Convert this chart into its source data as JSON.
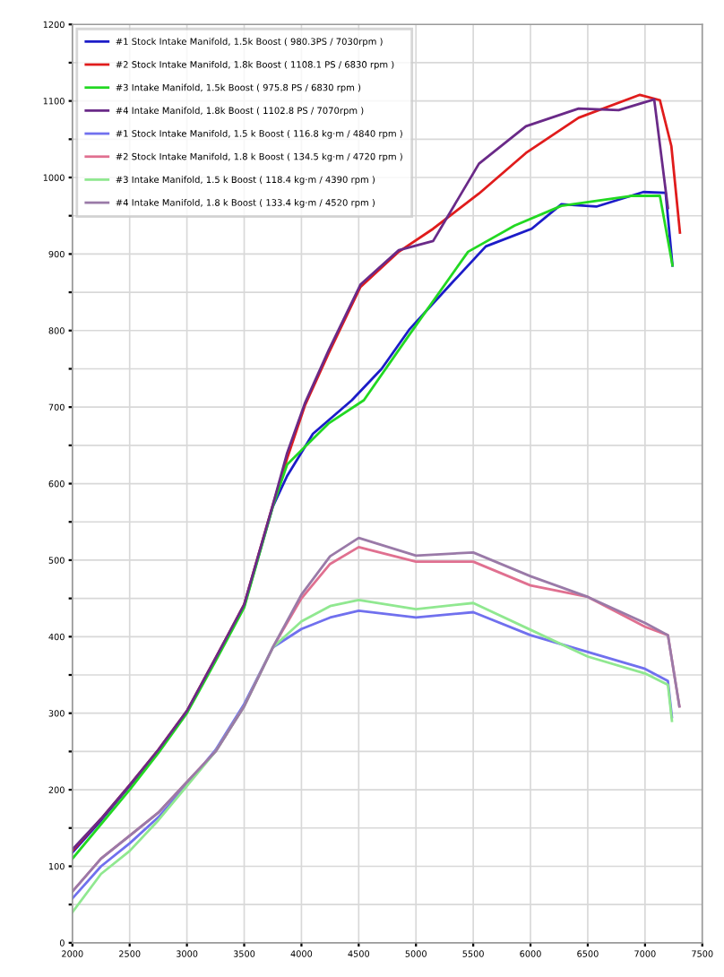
{
  "chart_data": {
    "type": "line",
    "xlim": [
      2000,
      7500
    ],
    "xticks": [
      2000,
      2500,
      3000,
      3500,
      4000,
      4500,
      5000,
      5500,
      6000,
      6500,
      7000,
      7500
    ],
    "ylim": [
      0,
      1200
    ],
    "yticks": [
      0,
      {
        "value": 50,
        "label": null
      },
      100,
      {
        "value": 150,
        "label": null
      },
      200,
      {
        "value": 250,
        "label": null
      },
      300,
      {
        "value": 350,
        "label": null
      },
      400,
      {
        "value": 450,
        "label": null
      },
      500,
      {
        "value": 550,
        "label": null
      },
      600,
      {
        "value": 650,
        "label": null
      },
      700,
      {
        "value": 750,
        "label": null
      },
      800,
      {
        "value": 850,
        "label": null
      },
      900,
      {
        "value": 950,
        "label": null
      },
      1000,
      {
        "value": 1050,
        "label": null
      },
      1100,
      {
        "value": 1150,
        "label": null
      },
      1200
    ],
    "grid": true,
    "legend": "top left",
    "marker": "none",
    "line_style": "solid",
    "series": [
      {
        "name": "#1 Stock Intake Manifold, 1.5k Boost ( 980.3PS / 7030rpm )",
        "color": "#1c1cc8",
        "x": [
          2000,
          2250,
          2500,
          2750,
          3000,
          3250,
          3500,
          3750,
          3875,
          4100,
          4440,
          4700,
          4940,
          5300,
          5610,
          6010,
          6270,
          6575,
          6985,
          7180,
          7240
        ],
        "values": [
          118,
          160,
          205,
          250,
          302,
          370,
          440,
          570,
          610,
          665,
          709,
          750,
          801,
          860,
          910,
          933,
          965,
          962,
          981,
          980,
          885
        ]
      },
      {
        "name": "#2 Stock Intake Manifold, 1.8k Boost ( 1108.1 PS / 6830 rpm )",
        "color": "#e01c1c",
        "x": [
          2000,
          2250,
          2500,
          2750,
          3000,
          3250,
          3500,
          3750,
          3875,
          4030,
          4240,
          4515,
          4850,
          5150,
          5550,
          5960,
          6420,
          6955,
          7130,
          7230,
          7305
        ],
        "values": [
          120,
          162,
          206,
          252,
          303,
          372,
          442,
          572,
          633,
          702,
          771,
          857,
          903,
          933,
          979,
          1032,
          1078,
          1108,
          1101,
          1041,
          928
        ]
      },
      {
        "name": "#3 Intake Manifold, 1.5k Boost ( 975.8 PS / 6830 rpm )",
        "color": "#22d822",
        "x": [
          2000,
          2250,
          2500,
          2750,
          3000,
          3250,
          3500,
          3750,
          3875,
          4240,
          4545,
          4940,
          5455,
          5860,
          6270,
          6880,
          7130,
          7240
        ],
        "values": [
          110,
          155,
          200,
          248,
          300,
          368,
          438,
          570,
          625,
          679,
          709,
          794,
          903,
          937,
          963,
          976,
          976,
          885
        ]
      },
      {
        "name": "#4 Intake Manifold, 1.8k Boost ( 1102.8 PS / 7070rpm )",
        "color": "#6a2a88",
        "x": [
          2000,
          2250,
          2500,
          2750,
          3000,
          3250,
          3500,
          3750,
          3875,
          4030,
          4240,
          4515,
          4850,
          5150,
          5550,
          5960,
          6420,
          6770,
          7080,
          7200
        ],
        "values": [
          122,
          162,
          206,
          252,
          303,
          372,
          442,
          572,
          640,
          705,
          775,
          860,
          905,
          917,
          1018,
          1067,
          1090,
          1088,
          1102,
          960
        ]
      },
      {
        "name": "#1 Stock Intake Manifold, 1.5 k Boost ( 116.8 kg·m / 4840 rpm )",
        "color": "#7070ee",
        "x": [
          2000,
          2250,
          2500,
          2750,
          3000,
          3250,
          3500,
          3750,
          4000,
          4250,
          4500,
          5000,
          5500,
          6000,
          6500,
          7000,
          7200,
          7235
        ],
        "values": [
          58,
          100,
          130,
          164,
          207,
          252,
          312,
          386,
          410,
          425,
          434,
          425,
          432,
          402,
          380,
          358,
          342,
          295
        ]
      },
      {
        "name": "#2 Stock Intake Manifold, 1.8 k Boost ( 134.5 kg·m / 4720 rpm )",
        "color": "#e07090",
        "x": [
          2000,
          2250,
          2500,
          2750,
          3000,
          3250,
          3500,
          3750,
          4000,
          4250,
          4500,
          5000,
          5500,
          6000,
          6500,
          7000,
          7200,
          7300
        ],
        "values": [
          67,
          110,
          140,
          170,
          210,
          250,
          309,
          386,
          450,
          495,
          517,
          498,
          498,
          467,
          452,
          413,
          402,
          309
        ]
      },
      {
        "name": "#3 Intake Manifold, 1.5 k Boost ( 118.4 kg·m / 4390 rpm )",
        "color": "#90e890",
        "x": [
          2000,
          2250,
          2500,
          2750,
          3000,
          3250,
          3500,
          3750,
          4000,
          4250,
          4500,
          5000,
          5500,
          6000,
          6500,
          7000,
          7200,
          7235
        ],
        "values": [
          40,
          90,
          120,
          160,
          205,
          250,
          309,
          386,
          420,
          440,
          448,
          436,
          444,
          409,
          374,
          352,
          337,
          290
        ]
      },
      {
        "name": "#4 Intake Manifold, 1.8 k Boost ( 133.4 kg·m / 4520 rpm )",
        "color": "#9a7aa8",
        "x": [
          2000,
          2250,
          2500,
          2750,
          3000,
          3250,
          3500,
          3750,
          4000,
          4250,
          4500,
          5000,
          5500,
          6000,
          6500,
          7000,
          7200,
          7300
        ],
        "values": [
          67,
          110,
          140,
          170,
          210,
          250,
          309,
          386,
          455,
          505,
          529,
          506,
          510,
          479,
          452,
          418,
          402,
          309
        ]
      }
    ]
  }
}
